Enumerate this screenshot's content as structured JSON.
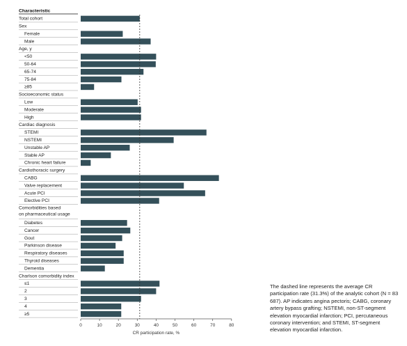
{
  "chart_data": {
    "type": "bar",
    "orientation": "horizontal",
    "header": "Characteristic",
    "xlabel": "CR participation rate, %",
    "xlim": [
      0,
      80
    ],
    "xticks": [
      0,
      10,
      20,
      30,
      40,
      50,
      60,
      70,
      80
    ],
    "reference_line": {
      "value": 31.3,
      "style": "dashed"
    },
    "bar_color": "#34505a",
    "rows": [
      {
        "label": "Total cohort",
        "value": 31.3,
        "kind": "top"
      },
      {
        "label": "Sex",
        "kind": "group"
      },
      {
        "label": "Female",
        "value": 22.3
      },
      {
        "label": "Male",
        "value": 37.1
      },
      {
        "label": "Age, y",
        "kind": "group"
      },
      {
        "label": "<50",
        "value": 40
      },
      {
        "label": "50-64",
        "value": 39.8
      },
      {
        "label": "65-74",
        "value": 33.3
      },
      {
        "label": "75-84",
        "value": 21.6
      },
      {
        "label": "≥85",
        "value": 7.1
      },
      {
        "label": "Socioeconomic status",
        "kind": "group"
      },
      {
        "label": "Low",
        "value": 30.2
      },
      {
        "label": "Moderate",
        "value": 32
      },
      {
        "label": "High",
        "value": 32
      },
      {
        "label": "Cardiac diagnosis",
        "kind": "group"
      },
      {
        "label": "STEMI",
        "value": 66.7
      },
      {
        "label": "NSTEMI",
        "value": 49.3
      },
      {
        "label": "Unstable AP",
        "value": 26
      },
      {
        "label": "Stable AP",
        "value": 16
      },
      {
        "label": "Chronic heart failure",
        "value": 5.3
      },
      {
        "label": "Cardiothoracic surgery",
        "kind": "group"
      },
      {
        "label": "CABG",
        "value": 73.3
      },
      {
        "label": "Valve replacement",
        "value": 54.7
      },
      {
        "label": "Acute PCI",
        "value": 66
      },
      {
        "label": "Elective PCI",
        "value": 41.6
      },
      {
        "label": "Comorbidities based\non pharmaceutical usage",
        "kind": "group2"
      },
      {
        "label": "Diabetes",
        "value": 24.6
      },
      {
        "label": "Cancer",
        "value": 26.3
      },
      {
        "label": "Gout",
        "value": 22
      },
      {
        "label": "Parkinson disease",
        "value": 18.5
      },
      {
        "label": "Respiratory diseases",
        "value": 22.8
      },
      {
        "label": "Thyroid diseases",
        "value": 22.8
      },
      {
        "label": "Dementia",
        "value": 12.8
      },
      {
        "label": "Charlson comorbidity index",
        "kind": "group"
      },
      {
        "label": "≤1",
        "value": 41.8
      },
      {
        "label": "2",
        "value": 40
      },
      {
        "label": "3",
        "value": 32
      },
      {
        "label": "4",
        "value": 21.5
      },
      {
        "label": "≥5",
        "value": 21.5
      }
    ]
  },
  "caption": "The dashed line represents the average CR participation rate (31.3%) of the analytic cohort (N = 83 687). AP indicates angina pectoris; CABG, coronary artery bypass grafting; NSTEMI, non-ST-segment elevation myocardial infarction; PCI, percutaneous coronary intervention; and STEMI, ST-segment elevation myocardial infarction."
}
